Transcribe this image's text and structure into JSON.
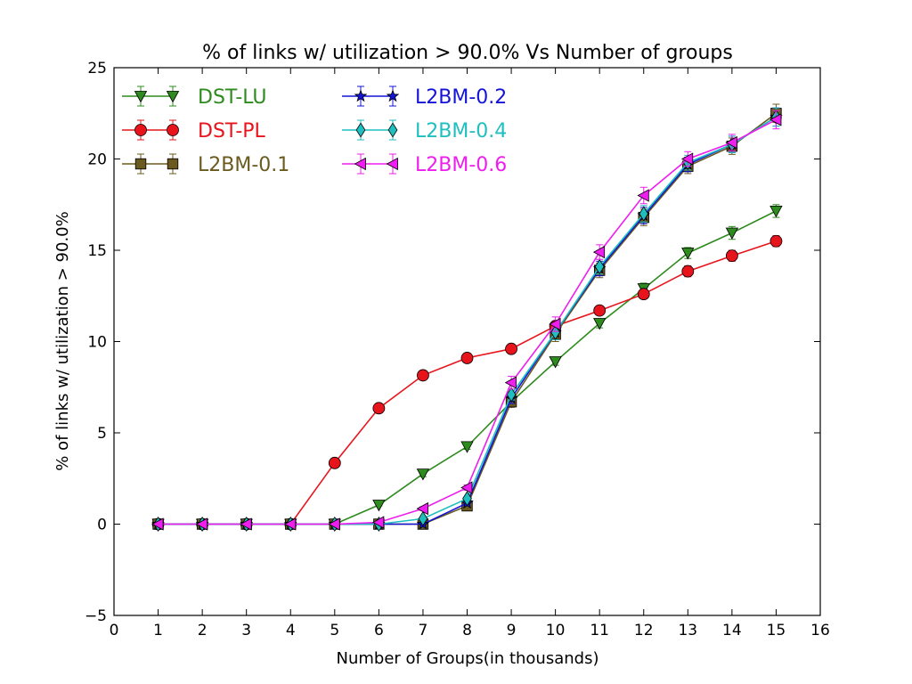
{
  "chart_data": {
    "type": "line",
    "title": "% of links w/ utilization > 90.0% Vs Number of groups",
    "xlabel": "Number of Groups(in thousands)",
    "ylabel": "% of links w/ utilization > 90.0%",
    "xlim": [
      0,
      16
    ],
    "ylim": [
      -5,
      25
    ],
    "xticks": [
      0,
      1,
      2,
      3,
      4,
      5,
      6,
      7,
      8,
      9,
      10,
      11,
      12,
      13,
      14,
      15,
      16
    ],
    "yticks": [
      -5,
      0,
      5,
      10,
      15,
      20,
      25
    ],
    "ytick_labels": [
      "−5",
      "0",
      "5",
      "10",
      "15",
      "20",
      "25"
    ],
    "grid": false,
    "legend_position": "top-left",
    "x": [
      1,
      2,
      3,
      4,
      5,
      6,
      7,
      8,
      9,
      10,
      11,
      12,
      13,
      14,
      15
    ],
    "series": [
      {
        "name": "DST-LU",
        "color": "#2e8b1e",
        "marker": "triangle-down",
        "values": [
          0,
          0,
          0,
          0,
          0,
          1.05,
          2.75,
          4.25,
          6.7,
          8.9,
          11.0,
          12.9,
          14.85,
          15.95,
          17.15
        ],
        "errors": [
          0,
          0,
          0,
          0,
          0,
          0.05,
          0.15,
          0.15,
          0.2,
          0.2,
          0.25,
          0.3,
          0.3,
          0.35,
          0.35
        ]
      },
      {
        "name": "DST-PL",
        "color": "#e8141c",
        "marker": "circle",
        "values": [
          0,
          0,
          0,
          0,
          3.35,
          6.35,
          8.15,
          9.1,
          9.6,
          10.85,
          11.7,
          12.6,
          13.85,
          14.7,
          15.5
        ],
        "errors": [
          0,
          0,
          0,
          0,
          0.1,
          0.1,
          0.1,
          0.1,
          0.15,
          0.2,
          0.2,
          0.25,
          0.3,
          0.3,
          0.3
        ]
      },
      {
        "name": "L2BM-0.1",
        "color": "#6b5a1e",
        "marker": "square",
        "values": [
          0,
          0,
          0,
          0,
          0,
          0,
          0,
          1.0,
          6.7,
          10.4,
          13.9,
          16.8,
          19.6,
          20.7,
          22.5
        ],
        "errors": [
          0,
          0,
          0,
          0,
          0,
          0,
          0,
          0.1,
          0.3,
          0.4,
          0.4,
          0.45,
          0.4,
          0.45,
          0.5
        ]
      },
      {
        "name": "L2BM-0.2",
        "color": "#1414d8",
        "marker": "star",
        "values": [
          0,
          0,
          0,
          0,
          0,
          0,
          0,
          1.15,
          6.9,
          10.5,
          14.0,
          16.9,
          19.7,
          20.8,
          22.3
        ],
        "errors": [
          0,
          0,
          0,
          0,
          0,
          0,
          0,
          0.1,
          0.3,
          0.4,
          0.4,
          0.45,
          0.4,
          0.45,
          0.5
        ]
      },
      {
        "name": "L2BM-0.4",
        "color": "#1fbfbf",
        "marker": "diamond",
        "values": [
          0,
          0,
          0,
          0,
          0,
          0,
          0.3,
          1.4,
          7.1,
          10.5,
          14.1,
          17.0,
          19.8,
          20.8,
          22.3
        ],
        "errors": [
          0,
          0,
          0,
          0,
          0,
          0,
          0.05,
          0.1,
          0.3,
          0.4,
          0.4,
          0.45,
          0.4,
          0.45,
          0.5
        ]
      },
      {
        "name": "L2BM-0.6",
        "color": "#ee1eee",
        "marker": "triangle-left",
        "values": [
          0,
          0,
          0,
          0,
          0,
          0.1,
          0.85,
          2.0,
          7.75,
          10.95,
          14.9,
          18.0,
          20.0,
          20.9,
          22.15
        ],
        "errors": [
          0,
          0,
          0,
          0,
          0,
          0.05,
          0.1,
          0.15,
          0.35,
          0.4,
          0.4,
          0.45,
          0.4,
          0.45,
          0.5
        ]
      }
    ]
  }
}
